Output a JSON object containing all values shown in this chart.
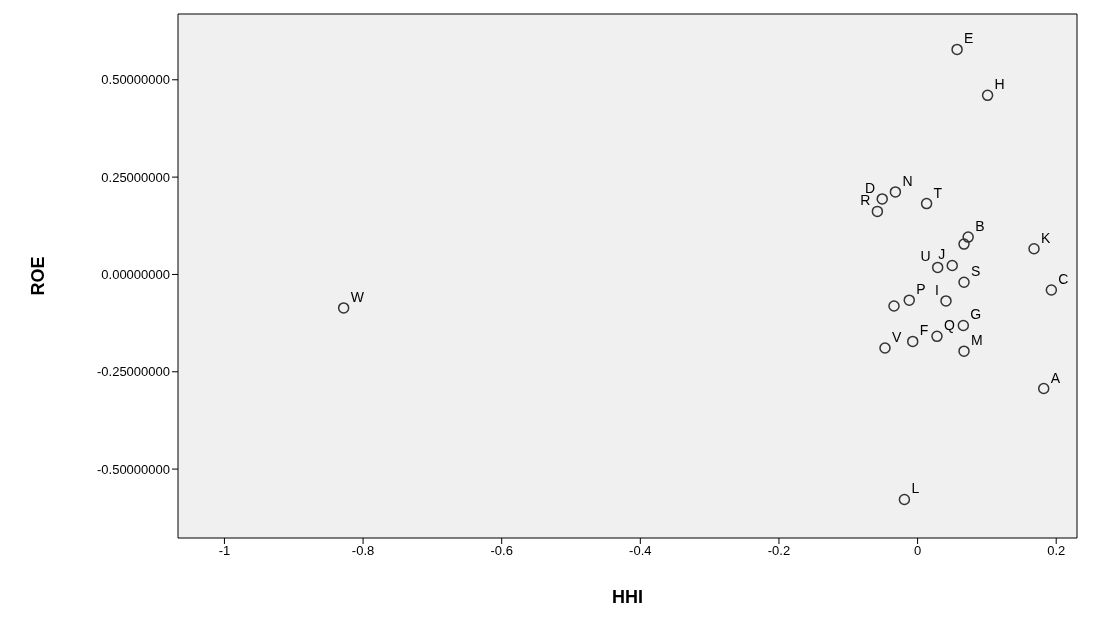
{
  "chart_data": {
    "type": "scatter",
    "xlabel": "HHI",
    "ylabel": "ROE",
    "marker": "circle",
    "xlim": [
      -1.067,
      0.23
    ],
    "ylim": [
      -0.677,
      0.669
    ],
    "xticks": [
      -1,
      -0.8,
      -0.6,
      -0.4,
      -0.2,
      0,
      0.2
    ],
    "yticks": [
      {
        "value": -0.5,
        "label": "-0.50000000"
      },
      {
        "value": -0.25,
        "label": "-0.25000000"
      },
      {
        "value": 0,
        "label": "0.00000000"
      },
      {
        "value": 0.25,
        "label": "0.25000000"
      },
      {
        "value": 0.5,
        "label": "0.50000000"
      }
    ],
    "series": [
      {
        "color": "#333333",
        "x": [
          0.057,
          0.101,
          -0.051,
          -0.032,
          -0.058,
          0.013,
          0.073,
          0.067,
          0.029,
          0.05,
          0.067,
          0.168,
          0.193,
          -0.828,
          -0.019,
          0.182,
          -0.047,
          -0.007,
          0.028,
          0.066,
          0.067,
          -0.012,
          -0.034,
          0.041
        ],
        "values": [
          0.578,
          0.46,
          0.194,
          0.212,
          0.162,
          0.182,
          0.096,
          0.078,
          0.018,
          0.023,
          -0.02,
          0.066,
          -0.04,
          -0.086,
          -0.578,
          -0.293,
          -0.189,
          -0.172,
          -0.159,
          -0.131,
          -0.197,
          -0.066,
          -0.081,
          -0.068
        ]
      }
    ],
    "annotations": [
      {
        "text": "E",
        "x": 0.057,
        "y": 0.578
      },
      {
        "text": "H",
        "x": 0.101,
        "y": 0.46
      },
      {
        "text": "D",
        "x": -0.051,
        "y": 0.194
      },
      {
        "text": "N",
        "x": -0.032,
        "y": 0.212
      },
      {
        "text": "R",
        "x": -0.058,
        "y": 0.162
      },
      {
        "text": "T",
        "x": 0.013,
        "y": 0.182
      },
      {
        "text": "B",
        "x": 0.073,
        "y": 0.096
      },
      {
        "text": "U",
        "x": 0.029,
        "y": 0.018
      },
      {
        "text": "J",
        "x": 0.05,
        "y": 0.023
      },
      {
        "text": "S",
        "x": 0.067,
        "y": -0.02
      },
      {
        "text": "K",
        "x": 0.168,
        "y": 0.066
      },
      {
        "text": "C",
        "x": 0.193,
        "y": -0.04
      },
      {
        "text": "W",
        "x": -0.828,
        "y": -0.086
      },
      {
        "text": "L",
        "x": -0.019,
        "y": -0.578
      },
      {
        "text": "A",
        "x": 0.182,
        "y": -0.293
      },
      {
        "text": "V",
        "x": -0.047,
        "y": -0.189
      },
      {
        "text": "F",
        "x": -0.007,
        "y": -0.172
      },
      {
        "text": "Q",
        "x": 0.028,
        "y": -0.159
      },
      {
        "text": "G",
        "x": 0.066,
        "y": -0.131
      },
      {
        "text": "M",
        "x": 0.067,
        "y": -0.197
      },
      {
        "text": "P",
        "x": -0.012,
        "y": -0.066
      },
      {
        "text": "I",
        "x": 0.041,
        "y": -0.068
      }
    ]
  }
}
